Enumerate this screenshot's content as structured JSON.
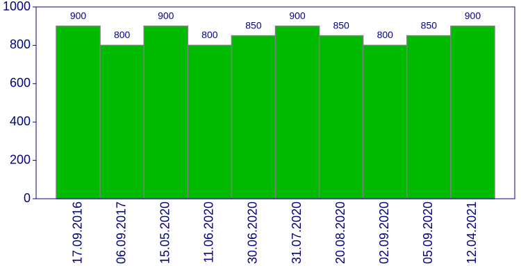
{
  "chart_data": {
    "type": "bar",
    "categories": [
      "17.09.2016",
      "06.09.2017",
      "15.05.2020",
      "11.06.2020",
      "30.06.2020",
      "31.07.2020",
      "20.08.2020",
      "02.09.2020",
      "05.09.2020",
      "12.04.2021"
    ],
    "values": [
      900,
      800,
      900,
      800,
      850,
      900,
      850,
      800,
      850,
      900
    ],
    "color": "#00bb00",
    "ylim": [
      0,
      1000
    ],
    "yticks": [
      0,
      200,
      400,
      600,
      800,
      1000
    ]
  }
}
